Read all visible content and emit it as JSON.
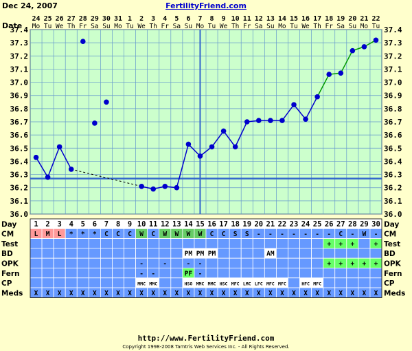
{
  "header": {
    "date": "Dec 24, 2007",
    "site": "FertilityFriend.com"
  },
  "footer": {
    "url": "http://www.FertilityFriend.com",
    "copyright": "Copyright 1998-2008 Tamtris Web Services Inc. - All Rights Reserved."
  },
  "colors": {
    "background": "#ffffcc",
    "plot_bg": "#ccffcc",
    "grid": "#6699cc",
    "row_bg": "#6699ff",
    "temp_line": "#0000cc",
    "rising_line": "#009900",
    "coverline": "#3366cc",
    "ovulation_line": "#3366cc",
    "menses_cell": "#ff9999",
    "fertile_cell": "#66cc66",
    "positive_cell": "#66ff66"
  },
  "chart_data": {
    "type": "line",
    "title": "",
    "row_labels": {
      "date": "Date",
      "day": "Day",
      "cm": "CM",
      "test": "Test",
      "bd": "BD",
      "opk": "OPK",
      "fern": "Fern",
      "cp": "CP",
      "meds": "Meds"
    },
    "dates": [
      "24",
      "25",
      "26",
      "27",
      "28",
      "29",
      "30",
      "31",
      "1",
      "2",
      "3",
      "4",
      "5",
      "6",
      "7",
      "8",
      "9",
      "10",
      "11",
      "12",
      "13",
      "14",
      "15",
      "16",
      "17",
      "18",
      "19",
      "20",
      "21",
      "22"
    ],
    "weekdays": [
      "Mo",
      "Tu",
      "We",
      "Th",
      "Fr",
      "Sa",
      "Su",
      "Mo",
      "Tu",
      "We",
      "Th",
      "Fr",
      "Sa",
      "Su",
      "Mo",
      "Tu",
      "We",
      "Th",
      "Fr",
      "Sa",
      "Su",
      "Mo",
      "Tu",
      "We",
      "Th",
      "Fr",
      "Sa",
      "Su",
      "Mo",
      "Tu"
    ],
    "days": [
      1,
      2,
      3,
      4,
      5,
      6,
      7,
      8,
      9,
      10,
      11,
      12,
      13,
      14,
      15,
      16,
      17,
      18,
      19,
      20,
      21,
      22,
      23,
      24,
      25,
      26,
      27,
      28,
      29,
      30
    ],
    "y_ticks": [
      "36.0",
      "36.1",
      "36.2",
      "36.3",
      "36.4",
      "36.5",
      "36.6",
      "36.7",
      "36.8",
      "36.9",
      "37.0",
      "37.1",
      "37.2",
      "37.3",
      "37.4"
    ],
    "ylim": [
      36.0,
      37.4
    ],
    "temperatures": [
      36.43,
      36.28,
      36.51,
      36.34,
      37.31,
      36.69,
      36.85,
      null,
      null,
      36.21,
      36.19,
      36.21,
      36.2,
      36.53,
      36.44,
      36.51,
      36.63,
      36.51,
      36.7,
      36.71,
      36.71,
      36.71,
      36.83,
      36.72,
      36.89,
      37.06,
      37.07,
      37.24,
      37.27,
      37.32
    ],
    "connected": [
      true,
      true,
      true,
      true,
      false,
      false,
      false,
      false,
      false,
      true,
      true,
      true,
      true,
      true,
      true,
      true,
      true,
      true,
      true,
      true,
      true,
      true,
      true,
      true,
      true,
      true,
      true,
      true,
      true,
      true
    ],
    "dashed_span": [
      4,
      10
    ],
    "rising_span": [
      25,
      30
    ],
    "coverline": 36.27,
    "ovulation_day": 15,
    "cm": [
      "L",
      "M",
      "L",
      "*",
      "*",
      "*",
      "C",
      "C",
      "C",
      "W",
      "C",
      "W",
      "W",
      "W",
      "W",
      "C",
      "C",
      "S",
      "S",
      "-",
      "-",
      "-",
      "-",
      "-",
      "-",
      "-",
      "C",
      "-",
      "W",
      "-"
    ],
    "cm_style": [
      "menses",
      "menses",
      "menses",
      "",
      "",
      "",
      "",
      "",
      "",
      "fertile",
      "",
      "fertile",
      "fertile",
      "fertile",
      "fertile",
      "",
      "",
      "",
      "",
      "",
      "",
      "",
      "",
      "",
      "",
      "",
      "",
      "",
      "",
      ""
    ],
    "test": [
      "",
      "",
      "",
      "",
      "",
      "",
      "",
      "",
      "",
      "",
      "",
      "",
      "",
      "",
      "",
      "",
      "",
      "",
      "",
      "",
      "",
      "",
      "",
      "",
      "",
      "+",
      "+",
      "+",
      "",
      "+"
    ],
    "bd": [
      "",
      "",
      "",
      "",
      "",
      "",
      "",
      "",
      "",
      "",
      "",
      "",
      "",
      "PM",
      "PM",
      "PM",
      "",
      "",
      "",
      "",
      "AM",
      "",
      "",
      "",
      "",
      "",
      "",
      "",
      "",
      ""
    ],
    "opk": [
      "",
      "",
      "",
      "",
      "",
      "",
      "",
      "",
      "",
      "-",
      "",
      "-",
      "",
      "-",
      "-",
      "",
      "",
      "",
      "",
      "",
      "",
      "",
      "",
      "",
      "",
      "+",
      "+",
      "+",
      "+",
      "+"
    ],
    "fern": [
      "",
      "",
      "",
      "",
      "",
      "",
      "",
      "",
      "",
      "-",
      "-",
      "",
      "",
      "PF",
      "-",
      "",
      "",
      "",
      "",
      "",
      "",
      "",
      "",
      "",
      "",
      "",
      "",
      "",
      "",
      ""
    ],
    "cp": [
      "",
      "",
      "",
      "",
      "",
      "",
      "",
      "",
      "",
      "MMC",
      "MMC",
      "",
      "",
      "HSO",
      "MMC",
      "MMC",
      "HSC",
      "MFC",
      "LMC",
      "LFC",
      "MFC",
      "MFC",
      "",
      "HFC",
      "MFC",
      "",
      "",
      "",
      "",
      ""
    ],
    "meds": [
      "X",
      "X",
      "X",
      "X",
      "X",
      "X",
      "X",
      "X",
      "X",
      "X",
      "X",
      "X",
      "X",
      "X",
      "X",
      "X",
      "X",
      "X",
      "X",
      "X",
      "X",
      "X",
      "X",
      "X",
      "X",
      "X",
      "X",
      "X",
      "X",
      "X"
    ]
  }
}
